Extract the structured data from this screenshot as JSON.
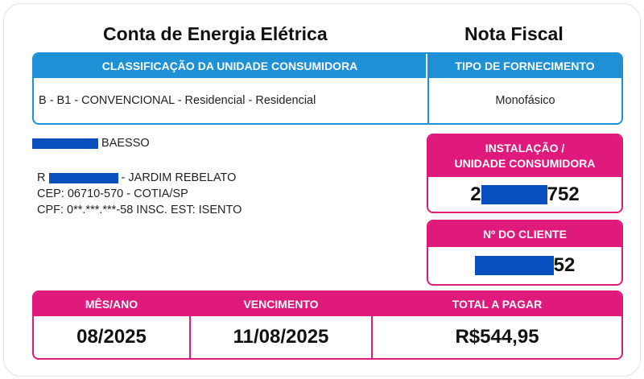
{
  "header": {
    "title": "Conta de Energia Elétrica",
    "nota": "Nota Fiscal"
  },
  "classificacao": {
    "label": "CLASSIFICAÇÃO DA UNIDADE CONSUMIDORA",
    "value": "B - B1 - CONVENCIONAL - Residencial - Residencial"
  },
  "fornecimento": {
    "label": "TIPO DE FORNECIMENTO",
    "value": "Monofásico"
  },
  "cliente": {
    "name_suffix": "BAESSO",
    "addr_prefix": "R",
    "addr_suffix": "- JARDIM REBELATO",
    "cep": "CEP: 06710-570 - COTIA/SP",
    "cpf": "CPF: 0**.***.***-58 INSC. EST: ISENTO"
  },
  "instalacao": {
    "label_1": "INSTALAÇÃO /",
    "label_2": "UNIDADE CONSUMIDORA",
    "prefix": "2",
    "suffix": "752"
  },
  "numero_cliente": {
    "label": "Nº DO CLIENTE",
    "suffix": "52"
  },
  "resumo": {
    "mes_label": "MÊS/ANO",
    "mes": "08/2025",
    "venc_label": "VENCIMENTO",
    "venc": "11/08/2025",
    "total_label": "TOTAL A PAGAR",
    "total": "R$544,95"
  },
  "colors": {
    "blue": "#1e90d6",
    "pink": "#e0197d",
    "redaction": "#0a4fc0"
  }
}
